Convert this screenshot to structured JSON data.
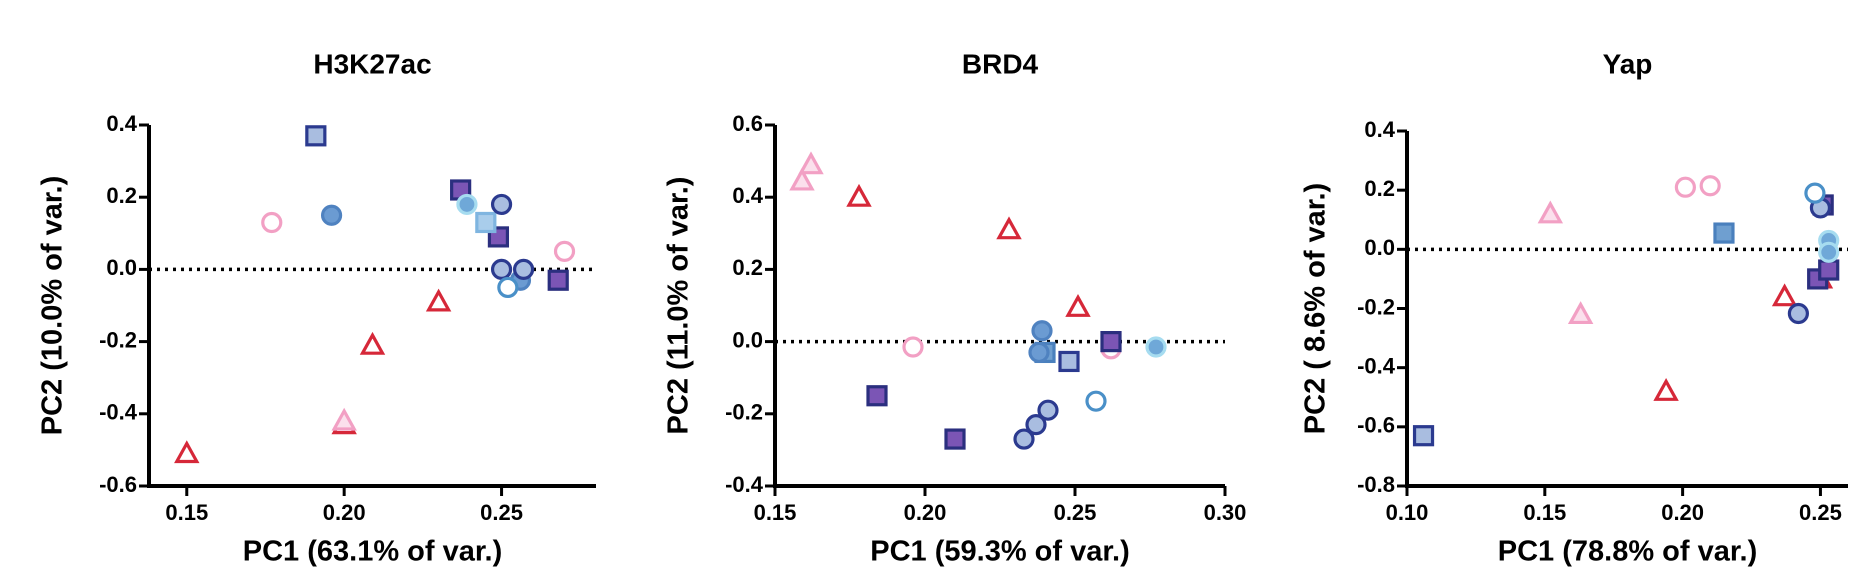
{
  "chart_data": [
    {
      "type": "scatter",
      "title": "H3K27ac",
      "xlabel": "PC1 (63.1% of var.)",
      "ylabel": "PC2 (10.0% of var.)",
      "xlim": [
        0.138,
        0.28
      ],
      "ylim": [
        -0.6,
        0.4
      ],
      "xticks": [
        0.15,
        {
          "value": 0.2,
          "label": "0.20"
        },
        0.25
      ],
      "yticks": [
        -0.6,
        -0.4,
        -0.2,
        {
          "value": 0,
          "label": "0.0"
        },
        0.2,
        0.4
      ],
      "reference_line": 0,
      "series": [
        {
          "marker": "triangle",
          "color": "#d62839",
          "fill": "#ffffff",
          "x": [
            0.15,
            0.2,
            0.209,
            0.23
          ],
          "y": [
            -0.51,
            -0.43,
            -0.21,
            -0.09
          ]
        },
        {
          "marker": "triangle",
          "color": "#f2a0c4",
          "fill": "#fbe0ec",
          "x": [
            0.2
          ],
          "y": [
            -0.42
          ]
        },
        {
          "marker": "circle",
          "color": "#f2a0c4",
          "fill": "#ffffff",
          "x": [
            0.177,
            0.27
          ],
          "y": [
            0.13,
            0.05
          ]
        },
        {
          "marker": "square",
          "color": "#2b3a8f",
          "fill": "#a9bde0",
          "x": [
            0.191
          ],
          "y": [
            0.37
          ]
        },
        {
          "marker": "square",
          "color": "#2b2f7f",
          "fill": "#7b55b5",
          "x": [
            0.237,
            0.249,
            0.268
          ],
          "y": [
            0.22,
            0.09,
            -0.03
          ]
        },
        {
          "marker": "square",
          "color": "#7fb5e0",
          "fill": "#a9cdeb",
          "x": [
            0.245
          ],
          "y": [
            0.13
          ]
        },
        {
          "marker": "circle",
          "color": "#4f82c0",
          "fill": "#6b9bd2",
          "x": [
            0.196,
            0.256
          ],
          "y": [
            0.15,
            -0.03
          ]
        },
        {
          "marker": "circle",
          "color": "#2b3a8f",
          "fill": "#a9bde0",
          "x": [
            0.25,
            0.25,
            0.257
          ],
          "y": [
            0.18,
            0.0,
            0.0
          ]
        },
        {
          "marker": "circle",
          "color": "#4a90c8",
          "fill": "#ffffff",
          "x": [
            0.252
          ],
          "y": [
            -0.05
          ]
        },
        {
          "marker": "circle",
          "color": "#a6dcf0",
          "fill": "#6fa8d8",
          "x": [
            0.239
          ],
          "y": [
            0.18
          ]
        }
      ]
    },
    {
      "type": "scatter",
      "title": "BRD4",
      "xlabel": "PC1 (59.3% of var.)",
      "ylabel": "PC2 (11.0% of var.)",
      "xlim": [
        0.15,
        0.3
      ],
      "ylim": [
        -0.4,
        0.6
      ],
      "xticks": [
        0.15,
        {
          "value": 0.2,
          "label": "0.20"
        },
        0.25,
        {
          "value": 0.3,
          "label": "0.30"
        }
      ],
      "yticks": [
        -0.4,
        -0.2,
        {
          "value": 0,
          "label": "0.0"
        },
        0.2,
        0.4,
        0.6
      ],
      "reference_line": 0,
      "series": [
        {
          "marker": "triangle",
          "color": "#d62839",
          "fill": "#ffffff",
          "x": [
            0.178,
            0.228,
            0.251
          ],
          "y": [
            0.4,
            0.31,
            0.095
          ]
        },
        {
          "marker": "triangle",
          "color": "#f2a0c4",
          "fill": "#fbe0ec",
          "x": [
            0.159,
            0.162
          ],
          "y": [
            0.445,
            0.49
          ]
        },
        {
          "marker": "circle",
          "color": "#f2a0c4",
          "fill": "#ffffff",
          "x": [
            0.196,
            0.262
          ],
          "y": [
            -0.015,
            -0.02
          ]
        },
        {
          "marker": "square",
          "color": "#2b3a8f",
          "fill": "#a9bde0",
          "x": [
            0.248
          ],
          "y": [
            -0.055
          ]
        },
        {
          "marker": "square",
          "color": "#2b2f7f",
          "fill": "#7b55b5",
          "x": [
            0.184,
            0.21,
            0.262
          ],
          "y": [
            -0.15,
            -0.27,
            0.0
          ]
        },
        {
          "marker": "square",
          "color": "#4a80bd",
          "fill": "#6f9fd0",
          "x": [
            0.24
          ],
          "y": [
            -0.03
          ]
        },
        {
          "marker": "circle",
          "color": "#4f82c0",
          "fill": "#6b9bd2",
          "x": [
            0.239,
            0.238
          ],
          "y": [
            0.03,
            -0.03
          ]
        },
        {
          "marker": "circle",
          "color": "#2b3a8f",
          "fill": "#a9bde0",
          "x": [
            0.233,
            0.237,
            0.241
          ],
          "y": [
            -0.27,
            -0.23,
            -0.19
          ]
        },
        {
          "marker": "circle",
          "color": "#4a90c8",
          "fill": "#ffffff",
          "x": [
            0.257
          ],
          "y": [
            -0.165
          ]
        },
        {
          "marker": "circle",
          "color": "#a6dcf0",
          "fill": "#6fa8d8",
          "x": [
            0.277
          ],
          "y": [
            -0.015
          ]
        }
      ]
    },
    {
      "type": "scatter",
      "title": "Yap",
      "xlabel": "PC1 (78.8% of var.)",
      "ylabel": "PC2 ( 8.6% of var.)",
      "xlim": [
        0.1,
        0.26
      ],
      "ylim": [
        -0.8,
        0.4
      ],
      "xticks": [
        {
          "value": 0.1,
          "label": "0.10"
        },
        0.15,
        {
          "value": 0.2,
          "label": "0.20"
        },
        0.25
      ],
      "yticks": [
        -0.8,
        -0.6,
        -0.4,
        -0.2,
        {
          "value": 0,
          "label": "0.0"
        },
        0.2,
        0.4
      ],
      "reference_line": 0,
      "series": [
        {
          "marker": "triangle",
          "color": "#d62839",
          "fill": "#ffffff",
          "x": [
            0.194,
            0.237,
            0.25
          ],
          "y": [
            -0.48,
            -0.16,
            -0.1
          ]
        },
        {
          "marker": "triangle",
          "color": "#f2a0c4",
          "fill": "#fbe0ec",
          "x": [
            0.152,
            0.163
          ],
          "y": [
            0.12,
            -0.22
          ]
        },
        {
          "marker": "circle",
          "color": "#f2a0c4",
          "fill": "#ffffff",
          "x": [
            0.201,
            0.21
          ],
          "y": [
            0.21,
            0.215
          ]
        },
        {
          "marker": "square",
          "color": "#2b3a8f",
          "fill": "#a9bde0",
          "x": [
            0.106
          ],
          "y": [
            -0.63
          ]
        },
        {
          "marker": "square",
          "color": "#2b2f7f",
          "fill": "#7b55b5",
          "x": [
            0.251,
            0.249,
            0.253
          ],
          "y": [
            0.15,
            -0.1,
            -0.07
          ]
        },
        {
          "marker": "square",
          "color": "#4a80bd",
          "fill": "#6f9fd0",
          "x": [
            0.215
          ],
          "y": [
            0.055
          ]
        },
        {
          "marker": "circle",
          "color": "#2b3a8f",
          "fill": "#a9bde0",
          "x": [
            0.242,
            0.25
          ],
          "y": [
            -0.217,
            0.14
          ]
        },
        {
          "marker": "circle",
          "color": "#4a90c8",
          "fill": "#ffffff",
          "x": [
            0.248
          ],
          "y": [
            0.19
          ]
        },
        {
          "marker": "circle",
          "color": "#a6dcf0",
          "fill": "#6fa8d8",
          "x": [
            0.253,
            0.253
          ],
          "y": [
            0.03,
            -0.01
          ]
        }
      ]
    }
  ]
}
